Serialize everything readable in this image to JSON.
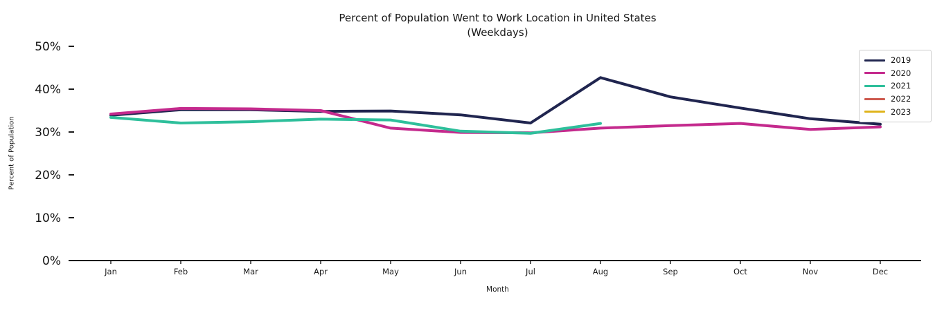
{
  "chart_data": {
    "type": "line",
    "title": "Percent of Population Went to Work Location in United States",
    "subtitle": "(Weekdays)",
    "xlabel": "Month",
    "ylabel": "Percent of Population",
    "categories": [
      "Jan",
      "Feb",
      "Mar",
      "Apr",
      "May",
      "Jun",
      "Jul",
      "Aug",
      "Sep",
      "Oct",
      "Nov",
      "Dec"
    ],
    "ylim": [
      0,
      50
    ],
    "yticks": [
      0,
      10,
      20,
      30,
      40,
      50
    ],
    "ytick_suffix": "%",
    "grid": false,
    "legend_position": "upper right",
    "axis_color": "#1a1a1a",
    "series": [
      {
        "name": "2019",
        "color": "#20254f",
        "values": [
          33.9,
          35.2,
          35.2,
          34.8,
          34.9,
          34.0,
          32.1,
          42.7,
          38.2,
          35.6,
          33.1,
          31.8
        ]
      },
      {
        "name": "2020",
        "color": "#c42a8d",
        "values": [
          34.2,
          35.5,
          35.4,
          35.0,
          30.9,
          29.9,
          29.8,
          30.9,
          31.5,
          32.0,
          30.6,
          31.2
        ]
      },
      {
        "name": "2021",
        "color": "#2ebf9b",
        "values": [
          33.4,
          32.1,
          32.4,
          33.0,
          32.8,
          30.2,
          29.7,
          32.0
        ]
      },
      {
        "name": "2022",
        "color": "#cd5a4e",
        "values": []
      },
      {
        "name": "2023",
        "color": "#dfb41c",
        "values": []
      }
    ]
  }
}
